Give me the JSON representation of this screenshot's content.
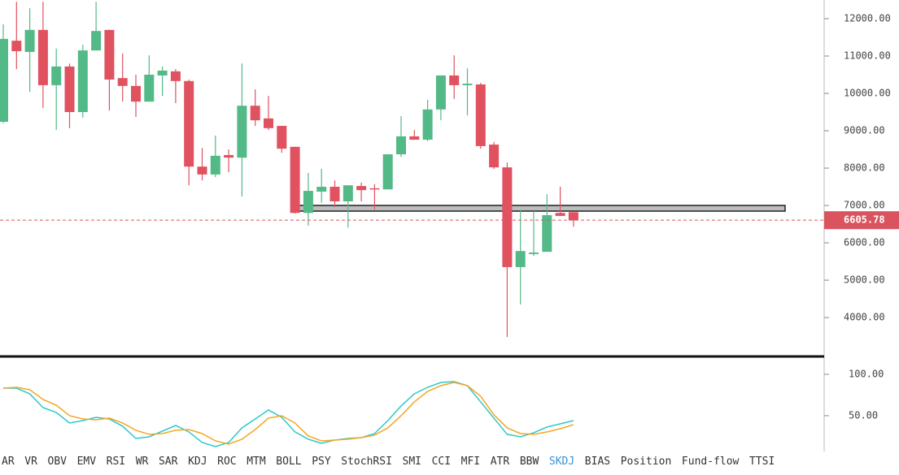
{
  "chart_data": [
    {
      "type": "candlestick",
      "open": [
        9240,
        11410,
        11110,
        11700,
        10220,
        10720,
        9500,
        11150,
        11700,
        10410,
        10200,
        9780,
        10480,
        10590,
        10330,
        8040,
        7830,
        8350,
        8280,
        9670,
        9330,
        9130,
        8570,
        6800,
        7370,
        7500,
        7110,
        7520,
        7460,
        7430,
        8370,
        8850,
        8760,
        9570,
        10480,
        10220,
        10240,
        8630,
        8020,
        5350,
        5700,
        5760,
        6800,
        6820
      ],
      "high": [
        11850,
        12450,
        12280,
        12450,
        11200,
        10800,
        11300,
        12450,
        11700,
        11070,
        10500,
        11020,
        10720,
        10650,
        10370,
        8540,
        8870,
        8500,
        10800,
        10110,
        9930,
        9130,
        8570,
        7870,
        7980,
        7670,
        7540,
        7610,
        7570,
        8370,
        9390,
        9020,
        9830,
        10480,
        11020,
        10670,
        10280,
        8700,
        8150,
        6890,
        6850,
        7300,
        7500,
        6820
      ],
      "low": [
        9200,
        10650,
        10040,
        9610,
        9020,
        9070,
        9350,
        11150,
        9540,
        9780,
        9370,
        9780,
        9930,
        9740,
        7540,
        7670,
        7760,
        7890,
        7240,
        9130,
        9020,
        8410,
        6780,
        6460,
        7070,
        6960,
        6410,
        7110,
        6890,
        7430,
        8300,
        8760,
        8720,
        9280,
        9850,
        9410,
        8520,
        7980,
        3480,
        4350,
        5650,
        5760,
        6720,
        6430
      ],
      "close": [
        11460,
        11130,
        11700,
        10220,
        10720,
        9500,
        11150,
        11670,
        10370,
        10200,
        9780,
        10500,
        10610,
        10330,
        8040,
        7830,
        8330,
        8280,
        9670,
        9280,
        9070,
        8520,
        6800,
        7390,
        7500,
        7110,
        7540,
        7410,
        7430,
        8370,
        8850,
        8760,
        9570,
        10480,
        10220,
        10260,
        8590,
        8020,
        5350,
        5780,
        5740,
        6740,
        6720,
        6600
      ],
      "up_color": "#53b987",
      "down_color": "#e0525f",
      "ylim": [
        2980,
        12500
      ],
      "yticks": [
        {
          "value": 12000,
          "label": "12000.00"
        },
        {
          "value": 11000,
          "label": "11000.00"
        },
        {
          "value": 10000,
          "label": "10000.00"
        },
        {
          "value": 9000,
          "label": "9000.00"
        },
        {
          "value": 8000,
          "label": "8000.00"
        },
        {
          "value": 7000,
          "label": "7000.00"
        },
        {
          "value": 6000,
          "label": "6000.00"
        },
        {
          "value": 5000,
          "label": "5000.00"
        },
        {
          "value": 4000,
          "label": "4000.00"
        }
      ],
      "last_price": 6605.78,
      "last_price_color": "#d9545e"
    },
    {
      "type": "line",
      "series": [
        {
          "color": "#2ec8c8",
          "values": [
            83.3,
            83.3,
            76.4,
            59.8,
            53.9,
            41.2,
            44.1,
            48,
            46,
            37.3,
            22.5,
            24.5,
            31.4,
            38.2,
            30.4,
            17.6,
            12.7,
            17.6,
            35.3,
            46,
            56.9,
            48,
            30.4,
            21.6,
            16.7,
            20.6,
            22.5,
            23.5,
            28.4,
            44.1,
            61.8,
            76.5,
            84.3,
            90.2,
            91.2,
            86.3,
            66.7,
            47,
            27.5,
            24.5,
            29.4,
            36.3,
            40.2,
            44.1
          ]
        },
        {
          "color": "#f5a623",
          "values": [
            83.3,
            84.3,
            81.4,
            69.6,
            62.7,
            50,
            46.1,
            45.1,
            47.1,
            41.2,
            32.4,
            27.5,
            28.4,
            32.4,
            33.3,
            28.4,
            19.6,
            15.7,
            21.6,
            33.3,
            47.1,
            50,
            41.2,
            25.5,
            19.6,
            20.6,
            21.6,
            23.5,
            26.5,
            35.3,
            50,
            66.7,
            79.4,
            86.3,
            90.2,
            86.3,
            73.5,
            51,
            35.3,
            28.4,
            27.5,
            30.4,
            34.3,
            39.2
          ]
        }
      ],
      "ylim": [
        7.8,
        120.6
      ],
      "yticks": [
        {
          "value": 100,
          "label": "100.00"
        },
        {
          "value": 50,
          "label": "50.00"
        }
      ]
    }
  ],
  "tabs": {
    "items": [
      "AR",
      "VR",
      "OBV",
      "EMV",
      "RSI",
      "WR",
      "SAR",
      "KDJ",
      "ROC",
      "MTM",
      "BOLL",
      "PSY",
      "StochRSI",
      "SMI",
      "CCI",
      "MFI",
      "ATR",
      "BBW",
      "SKDJ",
      "BIAS",
      "Position",
      "Fund-flow",
      "TTSI"
    ],
    "active": 18
  }
}
